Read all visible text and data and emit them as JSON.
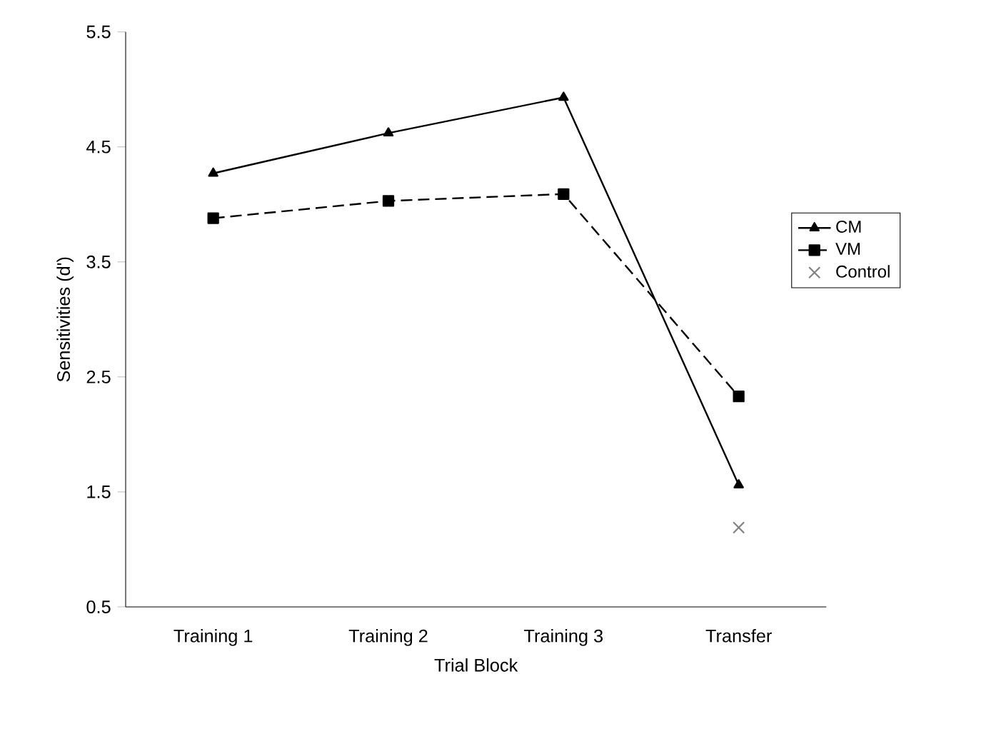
{
  "chart_data": {
    "type": "line",
    "xlabel": "Trial Block",
    "ylabel": "Sensitivities (d')",
    "categories": [
      "Training 1",
      "Training 2",
      "Training 3",
      "Transfer"
    ],
    "series": [
      {
        "name": "CM",
        "color": "#000000",
        "marker": "triangle",
        "line_style": "solid",
        "values": [
          4.27,
          4.62,
          4.93,
          1.56
        ]
      },
      {
        "name": "VM",
        "color": "#000000",
        "marker": "square",
        "line_style": "dashed",
        "values": [
          3.88,
          4.03,
          4.09,
          2.33
        ]
      },
      {
        "name": "Control",
        "type": "scatter",
        "color": "#808080",
        "marker": "cross",
        "values": [
          null,
          null,
          null,
          1.19
        ]
      }
    ],
    "ylim": [
      0.5,
      5.5
    ],
    "yticks": [
      0.5,
      1.5,
      2.5,
      3.5,
      4.5,
      5.5
    ],
    "grid": false,
    "legend": "right"
  }
}
